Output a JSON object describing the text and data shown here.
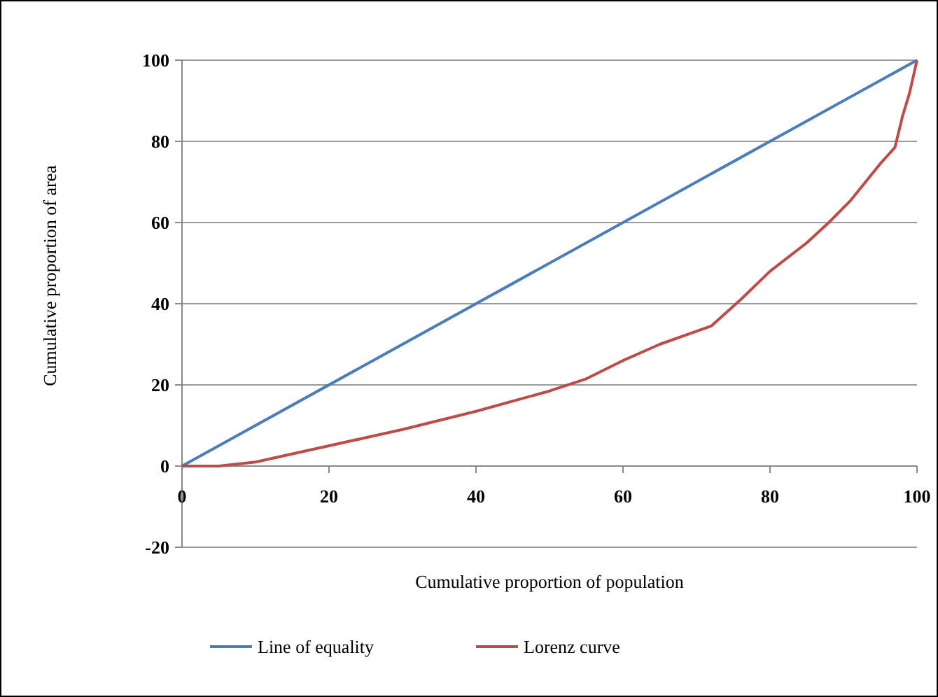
{
  "chart_data": {
    "type": "line",
    "xlabel": "Cumulative proportion of population",
    "ylabel": "Cumulative proportion of area",
    "xlim": [
      0,
      100
    ],
    "ylim": [
      -20,
      100
    ],
    "xticks": [
      0,
      20,
      40,
      60,
      80,
      100
    ],
    "yticks": [
      -20,
      0,
      20,
      40,
      60,
      80,
      100
    ],
    "grid": "y",
    "legend": "bottom",
    "marker": "none",
    "series": [
      {
        "name": "Line of equality",
        "color": "#4a7ebb",
        "x": [
          0,
          100
        ],
        "values": [
          0,
          100
        ]
      },
      {
        "name": "Lorenz curve",
        "color": "#be4b48",
        "x": [
          0,
          5,
          10,
          20,
          30,
          40,
          50,
          55,
          60,
          65,
          72,
          76,
          80,
          85,
          88,
          91,
          95,
          97,
          98,
          99,
          100
        ],
        "values": [
          0,
          0,
          1,
          5,
          9,
          13.5,
          18.5,
          21.5,
          26,
          30,
          34.5,
          41,
          48,
          55,
          60,
          65.5,
          74.5,
          78.5,
          86,
          92,
          100
        ]
      }
    ]
  }
}
